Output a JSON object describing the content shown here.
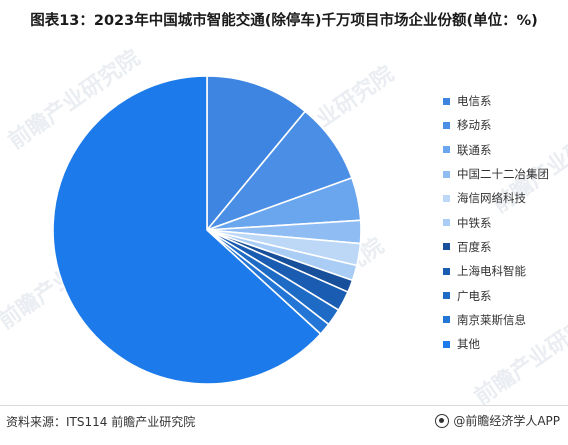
{
  "title": "图表13：2023年中国城市智能交通(除停车)千万项目市场企业份额(单位：%)",
  "watermark": "前瞻产业研究院",
  "footer": {
    "source": "资料来源：ITS114 前瞻产业研究院",
    "brand": "@前瞻经济学人APP"
  },
  "chart_data": {
    "type": "pie",
    "title": "图表13：2023年中国城市智能交通(除停车)千万项目市场企业份额(单位：%)",
    "unit": "%",
    "start_angle_deg": 0,
    "direction": "clockwise",
    "legend_position": "right",
    "labels": [
      "电信系",
      "移动系",
      "联通系",
      "中国二十二冶集团",
      "海信网络科技",
      "中铁系",
      "百度系",
      "上海电科智能",
      "广电系",
      "南京莱斯信息",
      "其他"
    ],
    "values": [
      11.0,
      8.5,
      4.5,
      2.4,
      2.3,
      1.6,
      1.3,
      2.1,
      1.8,
      1.3,
      63.2
    ],
    "colors": [
      "#3d85e0",
      "#4a8ee6",
      "#6aa6ee",
      "#8fbdf3",
      "#bdd8f7",
      "#a9cdf5",
      "#174f9a",
      "#1a5cb2",
      "#1e6bc6",
      "#2376d6",
      "#1c7aea"
    ]
  }
}
